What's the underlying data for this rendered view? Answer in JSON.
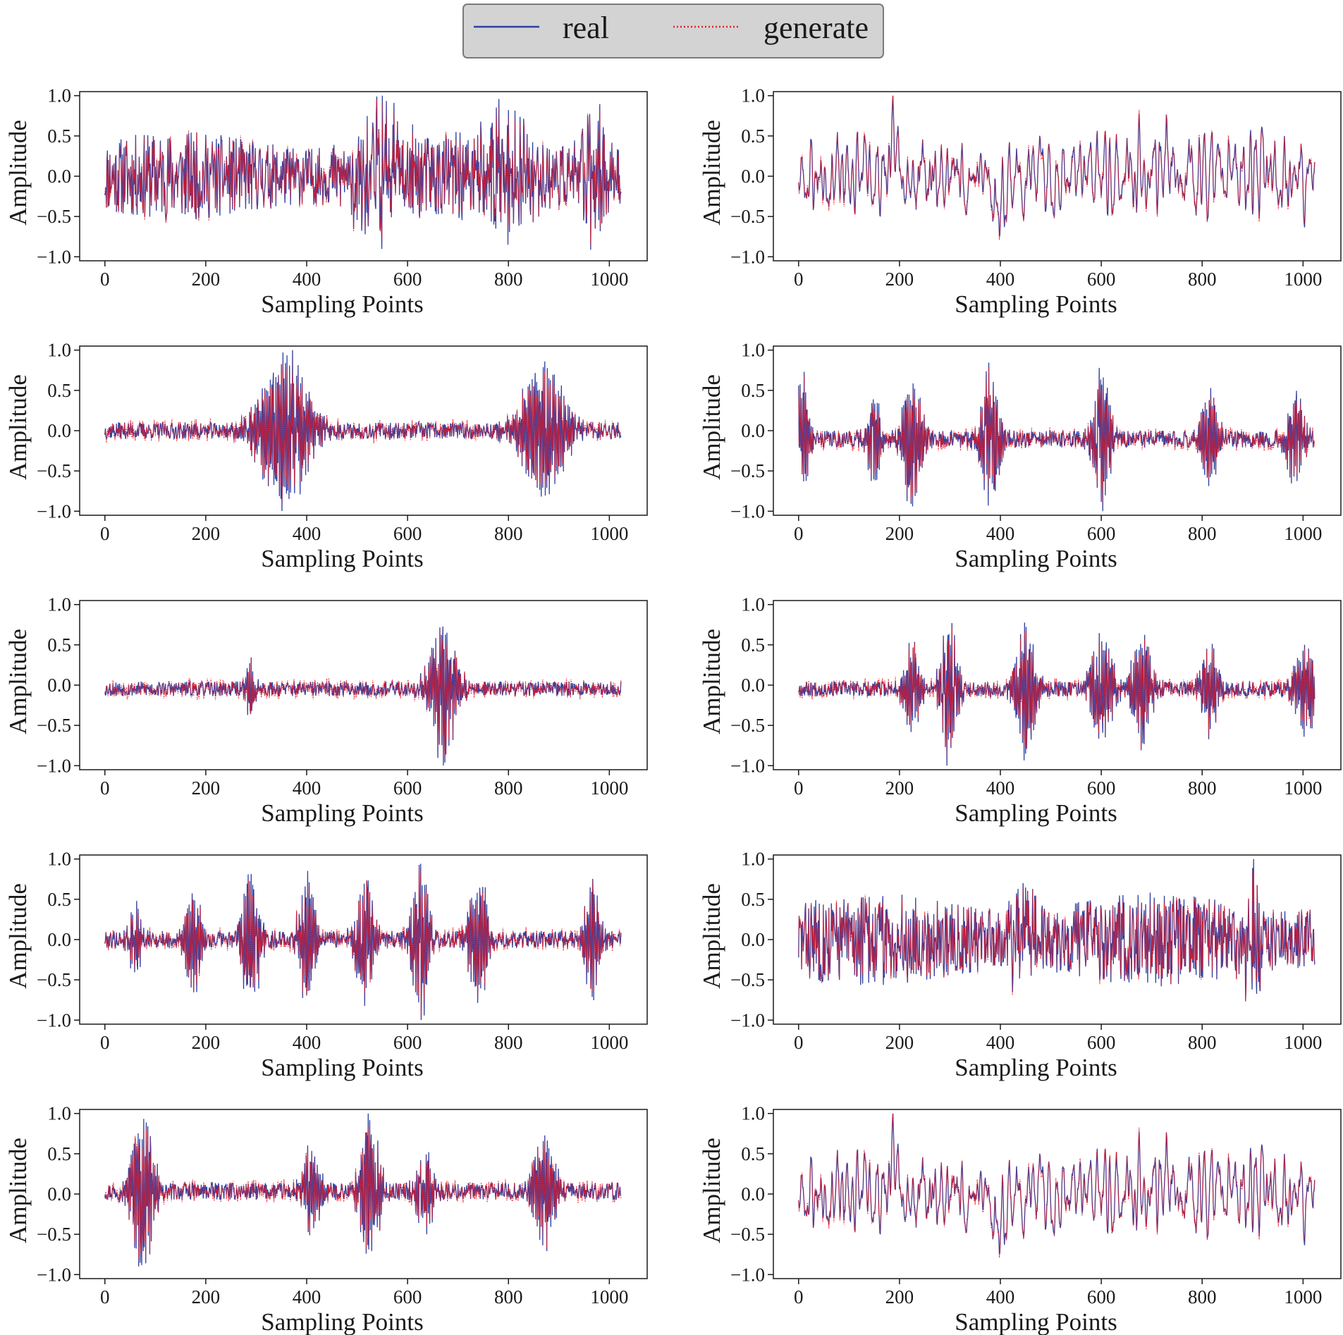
{
  "legend": {
    "entries": [
      {
        "label": "real",
        "color": "#2f3fa0",
        "style": "solid"
      },
      {
        "label": "generate",
        "color": "#ee1b24",
        "style": "dotted"
      }
    ]
  },
  "colors": {
    "real": "#2f3fa0",
    "generate": "#ee1b24",
    "frame": "#1a1a1a",
    "legend_bg": "#d3d3d3"
  },
  "chart_data": [
    {
      "type": "line",
      "panel": "row1-left",
      "xlabel": "Sampling Points",
      "ylabel": "Amplitude",
      "xlim": [
        -50,
        1075
      ],
      "ylim": [
        -1.05,
        1.05
      ],
      "xticks": [
        0,
        200,
        400,
        600,
        800,
        1000
      ],
      "yticks": [
        -1.0,
        -0.5,
        0.0,
        0.5,
        1.0
      ],
      "n_points": 1024,
      "series": [
        "real",
        "generate"
      ],
      "pattern": "broadband",
      "seed": 11,
      "bursts": [
        {
          "center": 540,
          "width": 40,
          "amp": 0.95
        },
        {
          "center": 790,
          "width": 35,
          "amp": 1.0
        },
        {
          "center": 970,
          "width": 20,
          "amp": 1.0
        }
      ]
    },
    {
      "type": "line",
      "panel": "row1-right",
      "xlabel": "Sampling Points",
      "ylabel": "Amplitude",
      "xlim": [
        -50,
        1075
      ],
      "ylim": [
        -1.05,
        1.05
      ],
      "xticks": [
        0,
        200,
        400,
        600,
        800,
        1000
      ],
      "yticks": [
        -1.0,
        -0.5,
        0.0,
        0.5,
        1.0
      ],
      "n_points": 1024,
      "series": [
        "real",
        "generate"
      ],
      "pattern": "smooth",
      "seed": 23,
      "bursts": [
        {
          "center": 195,
          "width": 12,
          "amp": 1.0
        },
        {
          "center": 395,
          "width": 10,
          "amp": -1.0
        },
        {
          "center": 730,
          "width": 10,
          "amp": 0.85
        }
      ]
    },
    {
      "type": "line",
      "panel": "row2-left",
      "xlabel": "Sampling Points",
      "ylabel": "Amplitude",
      "xlim": [
        -50,
        1075
      ],
      "ylim": [
        -1.05,
        1.05
      ],
      "xticks": [
        0,
        200,
        400,
        600,
        800,
        1000
      ],
      "yticks": [
        -1.0,
        -0.5,
        0.0,
        0.5,
        1.0
      ],
      "n_points": 1024,
      "series": [
        "real",
        "generate"
      ],
      "pattern": "bursts",
      "seed": 37,
      "baseline": 0.0,
      "bursts": [
        {
          "center": 355,
          "width": 40,
          "amp": 1.0
        },
        {
          "center": 870,
          "width": 35,
          "amp": 0.9
        }
      ]
    },
    {
      "type": "line",
      "panel": "row2-right",
      "xlabel": "Sampling Points",
      "ylabel": "Amplitude",
      "xlim": [
        -50,
        1075
      ],
      "ylim": [
        -1.05,
        1.05
      ],
      "xticks": [
        0,
        200,
        400,
        600,
        800,
        1000
      ],
      "yticks": [
        -1.0,
        -0.5,
        0.0,
        0.5,
        1.0
      ],
      "n_points": 1024,
      "series": [
        "real",
        "generate"
      ],
      "pattern": "bursts",
      "seed": 41,
      "baseline": -0.1,
      "bursts": [
        {
          "center": 5,
          "width": 12,
          "amp": 0.85
        },
        {
          "center": 150,
          "width": 12,
          "amp": 0.55
        },
        {
          "center": 225,
          "width": 14,
          "amp": 1.0
        },
        {
          "center": 380,
          "width": 14,
          "amp": 0.95
        },
        {
          "center": 600,
          "width": 14,
          "amp": 0.9
        },
        {
          "center": 815,
          "width": 14,
          "amp": 0.6
        },
        {
          "center": 985,
          "width": 14,
          "amp": 0.6
        }
      ]
    },
    {
      "type": "line",
      "panel": "row3-left",
      "xlabel": "Sampling Points",
      "ylabel": "Amplitude",
      "xlim": [
        -50,
        1075
      ],
      "ylim": [
        -1.05,
        1.05
      ],
      "xticks": [
        0,
        200,
        400,
        600,
        800,
        1000
      ],
      "yticks": [
        -1.0,
        -0.5,
        0.0,
        0.5,
        1.0
      ],
      "n_points": 1024,
      "series": [
        "real",
        "generate"
      ],
      "pattern": "bursts",
      "seed": 53,
      "baseline": -0.05,
      "bursts": [
        {
          "center": 290,
          "width": 10,
          "amp": 0.35
        },
        {
          "center": 670,
          "width": 22,
          "amp": 1.0
        }
      ]
    },
    {
      "type": "line",
      "panel": "row3-right",
      "xlabel": "Sampling Points",
      "ylabel": "Amplitude",
      "xlim": [
        -50,
        1075
      ],
      "ylim": [
        -1.05,
        1.05
      ],
      "xticks": [
        0,
        200,
        400,
        600,
        800,
        1000
      ],
      "yticks": [
        -1.0,
        -0.5,
        0.0,
        0.5,
        1.0
      ],
      "n_points": 1024,
      "series": [
        "real",
        "generate"
      ],
      "pattern": "bursts",
      "seed": 67,
      "baseline": -0.05,
      "bursts": [
        {
          "center": 225,
          "width": 14,
          "amp": 0.65
        },
        {
          "center": 298,
          "width": 14,
          "amp": 1.0
        },
        {
          "center": 450,
          "width": 16,
          "amp": 0.95
        },
        {
          "center": 600,
          "width": 18,
          "amp": 0.75
        },
        {
          "center": 680,
          "width": 16,
          "amp": 0.85
        },
        {
          "center": 815,
          "width": 14,
          "amp": 0.6
        },
        {
          "center": 1005,
          "width": 18,
          "amp": 0.65
        }
      ]
    },
    {
      "type": "line",
      "panel": "row4-left",
      "xlabel": "Sampling Points",
      "ylabel": "Amplitude",
      "xlim": [
        -50,
        1075
      ],
      "ylim": [
        -1.05,
        1.05
      ],
      "xticks": [
        0,
        200,
        400,
        600,
        800,
        1000
      ],
      "yticks": [
        -1.0,
        -0.5,
        0.0,
        0.5,
        1.0
      ],
      "n_points": 1024,
      "series": [
        "real",
        "generate"
      ],
      "pattern": "bursts",
      "seed": 79,
      "baseline": 0.0,
      "bursts": [
        {
          "center": 60,
          "width": 10,
          "amp": 0.45
        },
        {
          "center": 175,
          "width": 12,
          "amp": 0.7
        },
        {
          "center": 290,
          "width": 14,
          "amp": 0.9
        },
        {
          "center": 400,
          "width": 14,
          "amp": 0.85
        },
        {
          "center": 515,
          "width": 14,
          "amp": 0.85
        },
        {
          "center": 625,
          "width": 14,
          "amp": 1.0
        },
        {
          "center": 740,
          "width": 14,
          "amp": 0.95
        },
        {
          "center": 965,
          "width": 12,
          "amp": 0.75
        }
      ]
    },
    {
      "type": "line",
      "panel": "row4-right",
      "xlabel": "Sampling Points",
      "ylabel": "Amplitude",
      "xlim": [
        -50,
        1075
      ],
      "ylim": [
        -1.05,
        1.05
      ],
      "xticks": [
        0,
        200,
        400,
        600,
        800,
        1000
      ],
      "yticks": [
        -1.0,
        -0.5,
        0.0,
        0.5,
        1.0
      ],
      "n_points": 1024,
      "series": [
        "real",
        "generate"
      ],
      "pattern": "broadband",
      "seed": 83,
      "bursts": [
        {
          "center": 445,
          "width": 20,
          "amp": 1.0
        },
        {
          "center": 900,
          "width": 15,
          "amp": 1.0
        }
      ]
    },
    {
      "type": "line",
      "panel": "row5-left",
      "xlabel": "Sampling Points",
      "ylabel": "Amplitude",
      "xlim": [
        -50,
        1075
      ],
      "ylim": [
        -1.05,
        1.05
      ],
      "xticks": [
        0,
        200,
        400,
        600,
        800,
        1000
      ],
      "yticks": [
        -1.0,
        -0.5,
        0.0,
        0.5,
        1.0
      ],
      "n_points": 1024,
      "series": [
        "real",
        "generate"
      ],
      "pattern": "bursts",
      "seed": 97,
      "baseline": 0.03,
      "bursts": [
        {
          "center": 75,
          "width": 18,
          "amp": 1.0
        },
        {
          "center": 410,
          "width": 14,
          "amp": 0.55
        },
        {
          "center": 525,
          "width": 16,
          "amp": 0.9
        },
        {
          "center": 635,
          "width": 14,
          "amp": 0.5
        },
        {
          "center": 870,
          "width": 18,
          "amp": 0.75
        }
      ]
    },
    {
      "type": "line",
      "panel": "row5-right",
      "xlabel": "Sampling Points",
      "ylabel": "Amplitude",
      "xlim": [
        -50,
        1075
      ],
      "ylim": [
        -1.05,
        1.05
      ],
      "xticks": [
        0,
        200,
        400,
        600,
        800,
        1000
      ],
      "yticks": [
        -1.0,
        -0.5,
        0.0,
        0.5,
        1.0
      ],
      "n_points": 1024,
      "series": [
        "real",
        "generate"
      ],
      "pattern": "smooth",
      "seed": 23,
      "bursts": [
        {
          "center": 195,
          "width": 12,
          "amp": 1.0
        },
        {
          "center": 395,
          "width": 10,
          "amp": -1.0
        },
        {
          "center": 730,
          "width": 10,
          "amp": 0.85
        }
      ]
    }
  ]
}
